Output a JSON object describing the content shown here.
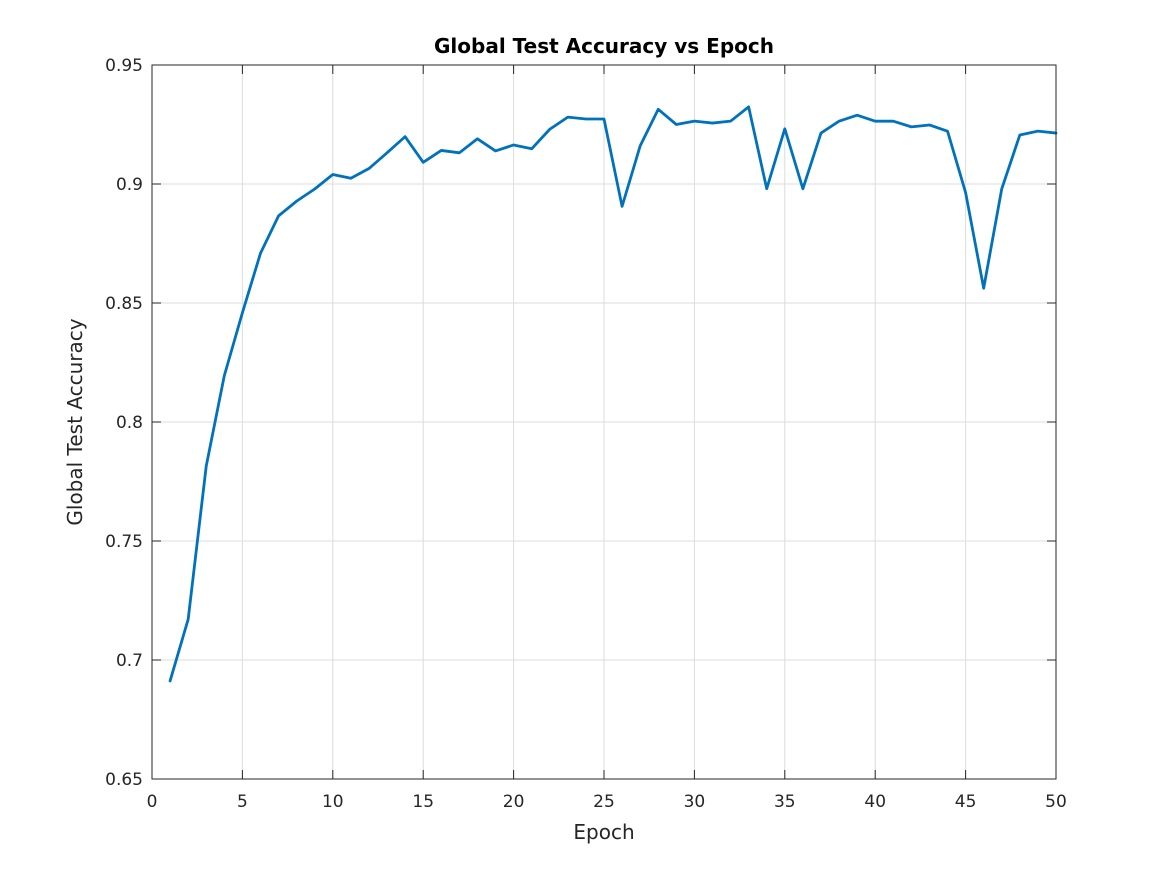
{
  "chart_data": {
    "type": "line",
    "title": "Global Test Accuracy vs Epoch",
    "xlabel": "Epoch",
    "ylabel": "Global Test Accuracy",
    "xlim": [
      0,
      50
    ],
    "ylim": [
      0.65,
      0.95
    ],
    "xticks": [
      0,
      5,
      10,
      15,
      20,
      25,
      30,
      35,
      40,
      45,
      50
    ],
    "xtick_labels": [
      "0",
      "5",
      "10",
      "15",
      "20",
      "25",
      "30",
      "35",
      "40",
      "45",
      "50"
    ],
    "yticks": [
      0.65,
      0.7,
      0.75,
      0.8,
      0.85,
      0.9,
      0.95
    ],
    "ytick_labels": [
      "0.65",
      "0.7",
      "0.75",
      "0.8",
      "0.85",
      "0.9",
      "0.95"
    ],
    "grid": true,
    "series": [
      {
        "name": "Global Test Accuracy",
        "color": "#0072BD",
        "x": [
          1,
          2,
          3,
          4,
          5,
          6,
          7,
          8,
          9,
          10,
          11,
          12,
          13,
          14,
          15,
          16,
          17,
          18,
          19,
          20,
          21,
          22,
          23,
          24,
          25,
          26,
          27,
          28,
          29,
          30,
          31,
          32,
          33,
          34,
          35,
          36,
          37,
          38,
          39,
          40,
          41,
          42,
          43,
          44,
          45,
          46,
          47,
          48,
          49,
          50
        ],
        "values": [
          0.6912,
          0.7171,
          0.7815,
          0.8195,
          0.8459,
          0.8709,
          0.8866,
          0.8928,
          0.8979,
          0.904,
          0.9024,
          0.9065,
          0.9131,
          0.9199,
          0.9091,
          0.9141,
          0.9131,
          0.919,
          0.9139,
          0.9164,
          0.9148,
          0.923,
          0.9281,
          0.9273,
          0.9273,
          0.8906,
          0.916,
          0.9314,
          0.925,
          0.9264,
          0.9256,
          0.9264,
          0.9324,
          0.898,
          0.9232,
          0.898,
          0.9214,
          0.9264,
          0.9289,
          0.9264,
          0.9264,
          0.924,
          0.9248,
          0.9222,
          0.8964,
          0.8562,
          0.898,
          0.9206,
          0.9222,
          0.9214
        ]
      }
    ]
  }
}
